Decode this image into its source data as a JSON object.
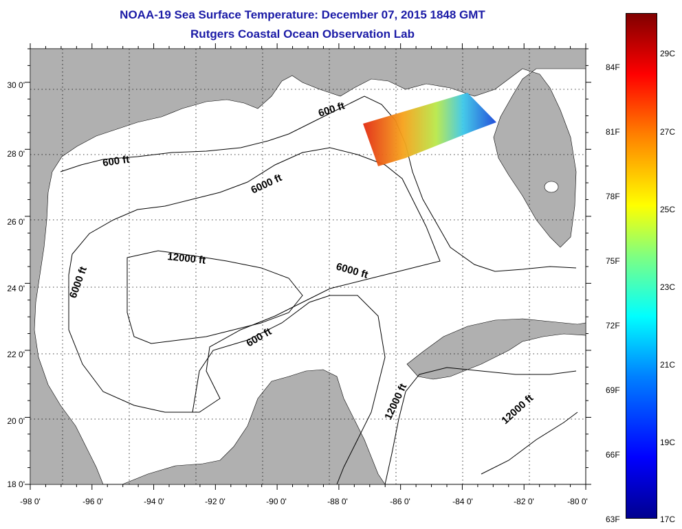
{
  "title": {
    "line1": "NOAA-19 Sea Surface Temperature:  December 07, 2015 1848 GMT",
    "line2": "Rutgers Coastal Ocean Observation Lab"
  },
  "map": {
    "region": "Gulf of Mexico",
    "lon_range": [
      -98,
      -80
    ],
    "lat_range": [
      18,
      31
    ],
    "lon_ticks": [
      "-98 0'",
      "-96 0'",
      "-94 0'",
      "-92 0'",
      "-90 0'",
      "-88 0'",
      "-86 0'",
      "-84 0'",
      "-82 0'",
      "-80 0'"
    ],
    "lat_ticks": [
      "30 0'",
      "28 0'",
      "26 0'",
      "24 0'",
      "22 0'",
      "20 0'",
      "18 0'"
    ],
    "contour_labels": [
      {
        "text": "600 ft"
      },
      {
        "text": "600 ft"
      },
      {
        "text": "6000 ft"
      },
      {
        "text": "12000 ft"
      },
      {
        "text": "6000 ft"
      },
      {
        "text": "6000 ft"
      },
      {
        "text": "600 ft"
      },
      {
        "text": "12000 ft"
      },
      {
        "text": "12000 ft"
      }
    ],
    "colors": {
      "land": "#b0b0b0",
      "water": "#ffffff",
      "grid": "#000000"
    }
  },
  "colorbar": {
    "fahrenheit_labels": [
      "84F",
      "81F",
      "78F",
      "75F",
      "72F",
      "69F",
      "66F",
      "63F"
    ],
    "celsius_labels": [
      "29C",
      "27C",
      "25C",
      "23C",
      "21C",
      "19C",
      "17C"
    ],
    "range_celsius": [
      17,
      30
    ],
    "colormap": "jet"
  }
}
